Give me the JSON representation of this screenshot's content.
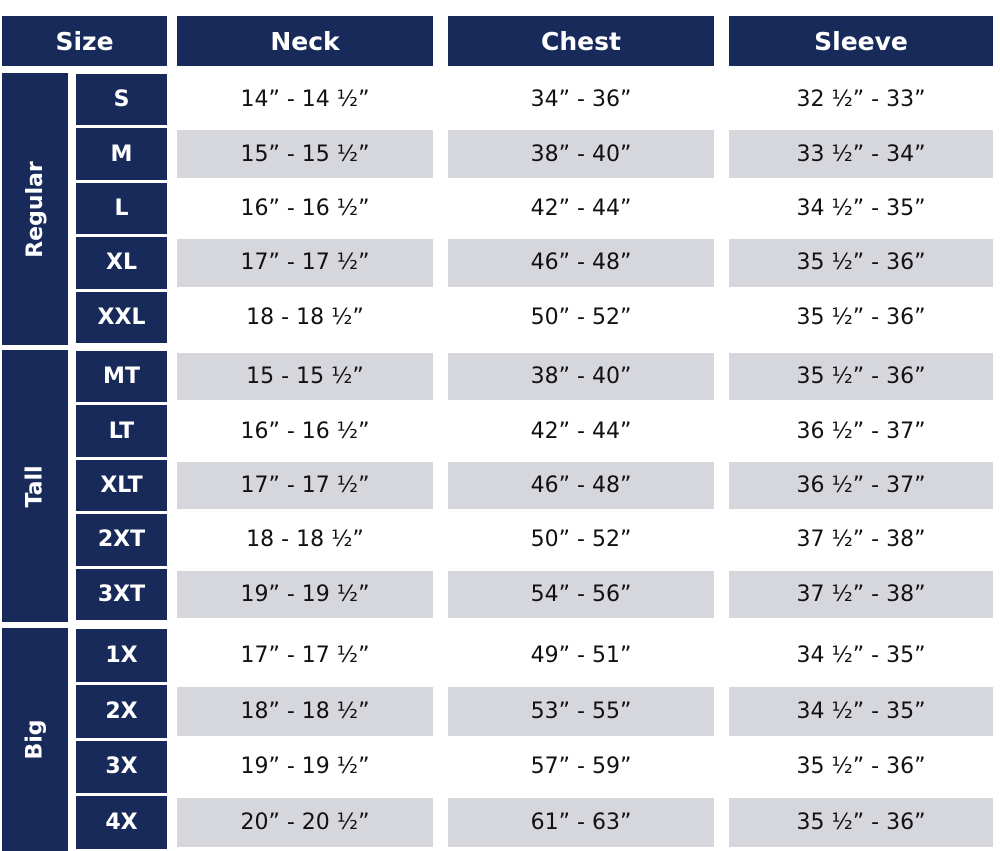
{
  "header": {
    "size": "Size",
    "columns": [
      "Neck",
      "Chest",
      "Sleeve"
    ]
  },
  "groups": [
    {
      "name": "Regular",
      "rows": [
        {
          "size": "S",
          "values": [
            "14” - 14 ½”",
            "34” - 36”",
            "32 ½” - 33”"
          ]
        },
        {
          "size": "M",
          "values": [
            "15” - 15 ½”",
            "38” - 40”",
            "33 ½” - 34”"
          ]
        },
        {
          "size": "L",
          "values": [
            "16” - 16 ½”",
            "42” - 44”",
            "34 ½” - 35”"
          ]
        },
        {
          "size": "XL",
          "values": [
            "17” - 17 ½”",
            "46” - 48”",
            "35 ½” - 36”"
          ]
        },
        {
          "size": "XXL",
          "values": [
            "18 - 18 ½”",
            "50” - 52”",
            "35 ½” - 36”"
          ]
        }
      ]
    },
    {
      "name": "Tall",
      "rows": [
        {
          "size": "MT",
          "values": [
            "15 - 15 ½”",
            "38” - 40”",
            "35 ½” - 36”"
          ]
        },
        {
          "size": "LT",
          "values": [
            "16” - 16 ½”",
            "42” - 44”",
            "36 ½” - 37”"
          ]
        },
        {
          "size": "XLT",
          "values": [
            "17” - 17 ½”",
            "46” - 48”",
            "36 ½” - 37”"
          ]
        },
        {
          "size": "2XT",
          "values": [
            "18 - 18 ½”",
            "50” - 52”",
            "37 ½” - 38”"
          ]
        },
        {
          "size": "3XT",
          "values": [
            "19” - 19 ½”",
            "54” - 56”",
            "37 ½” - 38”"
          ]
        }
      ]
    },
    {
      "name": "Big",
      "rows": [
        {
          "size": "1X",
          "values": [
            "17” - 17 ½”",
            "49” - 51”",
            "34 ½” - 35”"
          ]
        },
        {
          "size": "2X",
          "values": [
            "18” - 18 ½”",
            "53” - 55”",
            "34 ½” - 35”"
          ]
        },
        {
          "size": "3X",
          "values": [
            "19” - 19 ½”",
            "57” - 59”",
            "35 ½” - 36”"
          ]
        },
        {
          "size": "4X",
          "values": [
            "20” - 20 ½”",
            "61” - 63”",
            "35 ½” - 36”"
          ]
        }
      ]
    }
  ]
}
